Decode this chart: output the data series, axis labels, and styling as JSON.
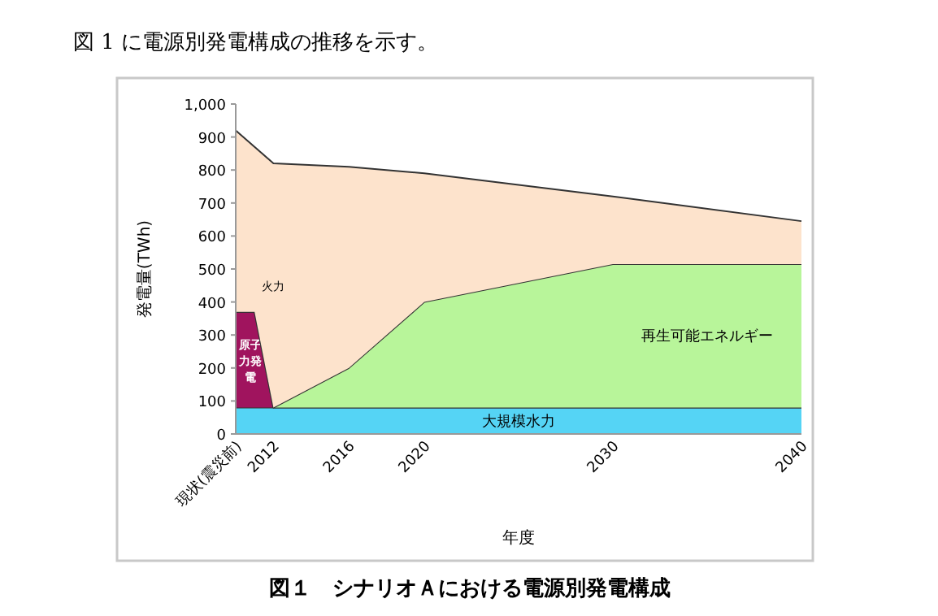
{
  "chart_data": {
    "type": "area",
    "stacked": true,
    "title": "図１　シナリオＡにおける電源別発電構成",
    "annotations": [
      "図 1 に電源別発電構成の推移を示す。"
    ],
    "xlabel": "年度",
    "ylabel": "発電量(TWh)",
    "x": [
      2010,
      2011,
      2012,
      2016,
      2020,
      2030,
      2040
    ],
    "series": [
      {
        "name": "大規模水力",
        "color": "#55d4f5",
        "values": [
          80,
          80,
          80,
          80,
          80,
          80,
          80
        ]
      },
      {
        "name": "原子力発電",
        "color": "#a0145e",
        "values": [
          290,
          290,
          0,
          0,
          0,
          0,
          0
        ]
      },
      {
        "name": "再生可能エネルギー",
        "color": "#b8f59a",
        "values": [
          0,
          0,
          0,
          120,
          320,
          435,
          435
        ]
      },
      {
        "name": "火力",
        "color": "#fde3cc",
        "values": [
          550,
          500,
          740,
          610,
          390,
          205,
          130
        ]
      }
    ],
    "xlim": [
      2010,
      2040
    ],
    "xticks": [
      {
        "value": 2010,
        "label": "現状(震災前)"
      },
      2012,
      2016,
      2020,
      2030,
      2040
    ],
    "ylim": [
      0,
      1000
    ],
    "yticks": [
      0,
      100,
      200,
      300,
      400,
      500,
      600,
      700,
      800,
      900,
      {
        "value": 1000,
        "label": "1,000"
      }
    ],
    "legend": false,
    "grid": false
  }
}
